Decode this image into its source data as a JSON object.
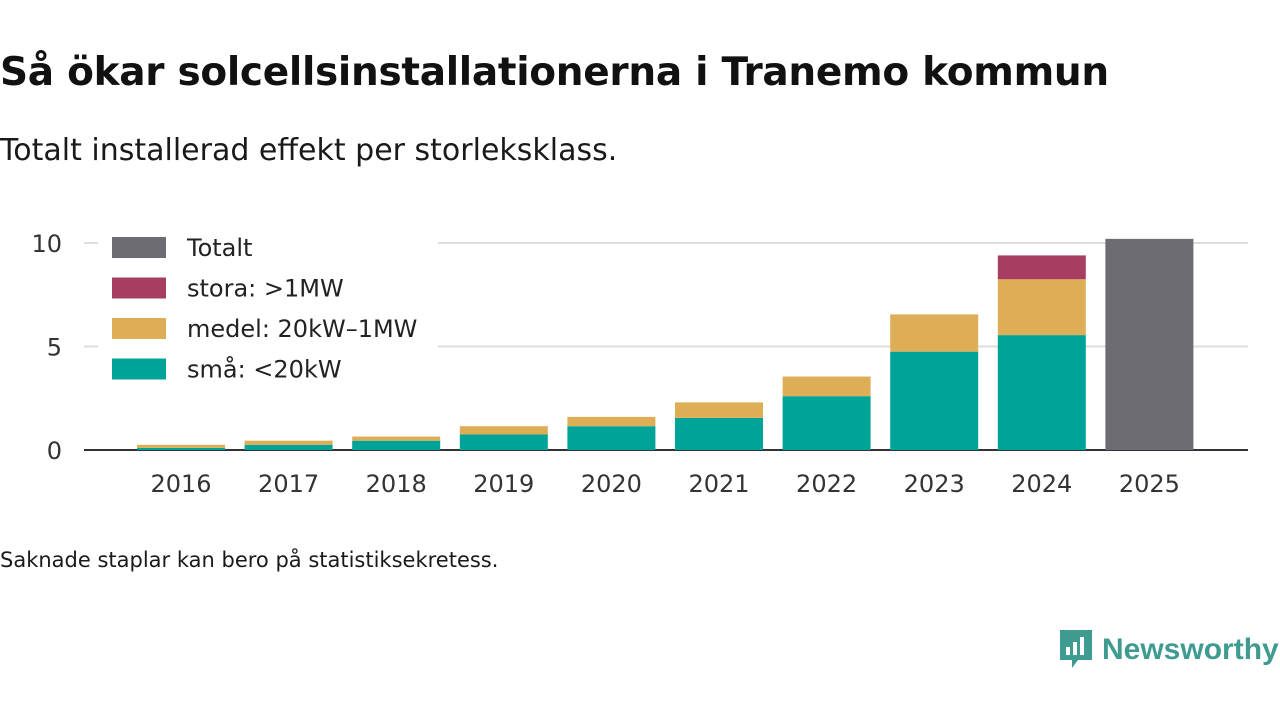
{
  "title": "Så ökar solcellsinstallationerna i Tranemo kommun",
  "subtitle": "Totalt installerad effekt per storleksklass.",
  "note": "Saknade staplar kan bero på statistiksekretess.",
  "brand": {
    "name": "Newsworthy",
    "icon": "newsworthy-logo-icon",
    "color": "#3f9b8f"
  },
  "chart_data": {
    "type": "bar",
    "stacked": true,
    "categories": [
      "2016",
      "2017",
      "2018",
      "2019",
      "2020",
      "2021",
      "2022",
      "2023",
      "2024",
      "2025"
    ],
    "y_ticks": [
      0,
      5,
      10
    ],
    "ylim": [
      0,
      10.6
    ],
    "grid": true,
    "legend_position": "top-left",
    "series": [
      {
        "key": "sma",
        "name": "små: <20kW",
        "color": "#00a398",
        "values": [
          0.1,
          0.25,
          0.45,
          0.75,
          1.15,
          1.55,
          2.6,
          4.75,
          5.55,
          null
        ]
      },
      {
        "key": "medel",
        "name": "medel: 20kW–1MW",
        "color": "#deae57",
        "values": [
          0.15,
          0.2,
          0.2,
          0.4,
          0.45,
          0.75,
          0.95,
          1.8,
          2.7,
          null
        ]
      },
      {
        "key": "stora",
        "name": "stora: >1MW",
        "color": "#a83d62",
        "values": [
          0,
          0,
          0,
          0,
          0,
          0,
          0,
          0,
          1.15,
          null
        ]
      },
      {
        "key": "totalt",
        "name": "Totalt",
        "color": "#6d6c73",
        "values": [
          null,
          null,
          null,
          null,
          null,
          null,
          null,
          null,
          null,
          10.2
        ]
      }
    ],
    "legend_order": [
      "totalt",
      "stora",
      "medel",
      "sma"
    ]
  }
}
